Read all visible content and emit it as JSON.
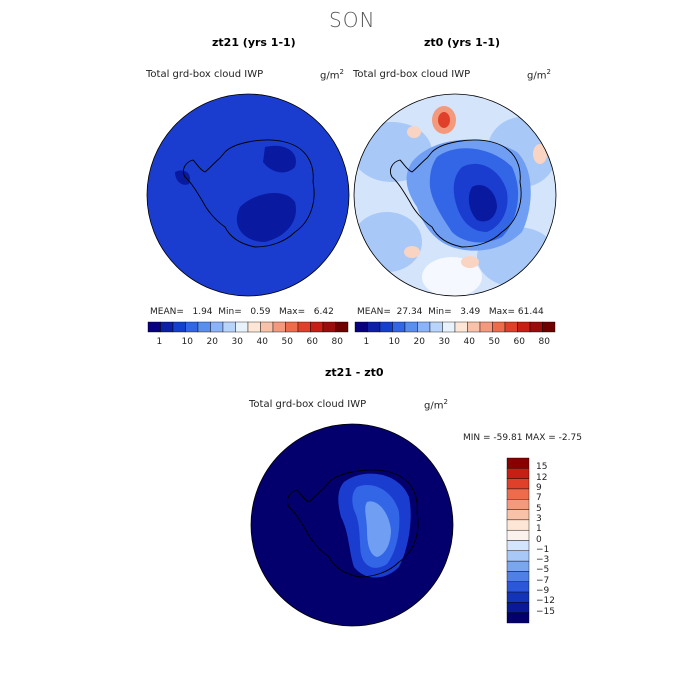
{
  "figure": {
    "season": "SON"
  },
  "panels": [
    {
      "title": "zt21 (yrs 1-1)",
      "variable": "Total grd-box cloud IWP",
      "units": "g/m",
      "units_exp": "2",
      "stats": {
        "mean_label": "MEAN=",
        "mean": "1.94",
        "min_label": "Min=",
        "min": "0.59",
        "max_label": "Max=",
        "max": "6.42"
      }
    },
    {
      "title": "zt0 (yrs 1-1)",
      "variable": "Total grd-box cloud IWP",
      "units": "g/m",
      "units_exp": "2",
      "stats": {
        "mean_label": "MEAN=",
        "mean": "27.34",
        "min_label": "Min=",
        "min": "3.49",
        "max_label": "Max=",
        "max": "61.44"
      }
    },
    {
      "title": "zt21 - zt0",
      "variable": "Total grd-box cloud IWP",
      "units": "g/m",
      "units_exp": "2",
      "stats": {
        "text": "MIN = -59.81 MAX =  -2.75"
      }
    }
  ],
  "colorbar_horizontal": {
    "labels": [
      "1",
      "10",
      "20",
      "30",
      "40",
      "50",
      "60",
      "80"
    ],
    "colors": [
      "#08007f",
      "#0c1fa8",
      "#1440d0",
      "#3366e6",
      "#5a8ff0",
      "#8ab4f8",
      "#b8d4fb",
      "#e8f2fc",
      "#fde6d6",
      "#f9c2a8",
      "#f49a7c",
      "#ee6b4c",
      "#e0402a",
      "#c81f14",
      "#9c0c0a",
      "#6e0000"
    ]
  },
  "colorbar_vertical": {
    "labels": [
      "15",
      "12",
      "9",
      "7",
      "5",
      "3",
      "1",
      "0",
      "-1",
      "-3",
      "-5",
      "-7",
      "-9",
      "-12",
      "-15"
    ],
    "colors": [
      "#8a0000",
      "#c81f14",
      "#e0402a",
      "#ee6b4c",
      "#f49a7c",
      "#f9c2a8",
      "#fde6d6",
      "#fbf2ee",
      "#d4e4fb",
      "#a8c8f7",
      "#7aa6f0",
      "#5080e6",
      "#2a58d8",
      "#1434b8",
      "#0a1a96",
      "#03006e"
    ]
  },
  "map_colors": {
    "deep": "#03006e",
    "dark": "#0a1aa0",
    "mid": "#1a3dd0",
    "blue": "#3366e6",
    "light": "#6f9ef2",
    "pale": "#a8c8f7",
    "verypale": "#d4e4fb",
    "white": "#f5f8ff",
    "peach": "#f9d4c2",
    "salmon": "#f49a7c",
    "red": "#e0402a",
    "coast": "#000000"
  }
}
